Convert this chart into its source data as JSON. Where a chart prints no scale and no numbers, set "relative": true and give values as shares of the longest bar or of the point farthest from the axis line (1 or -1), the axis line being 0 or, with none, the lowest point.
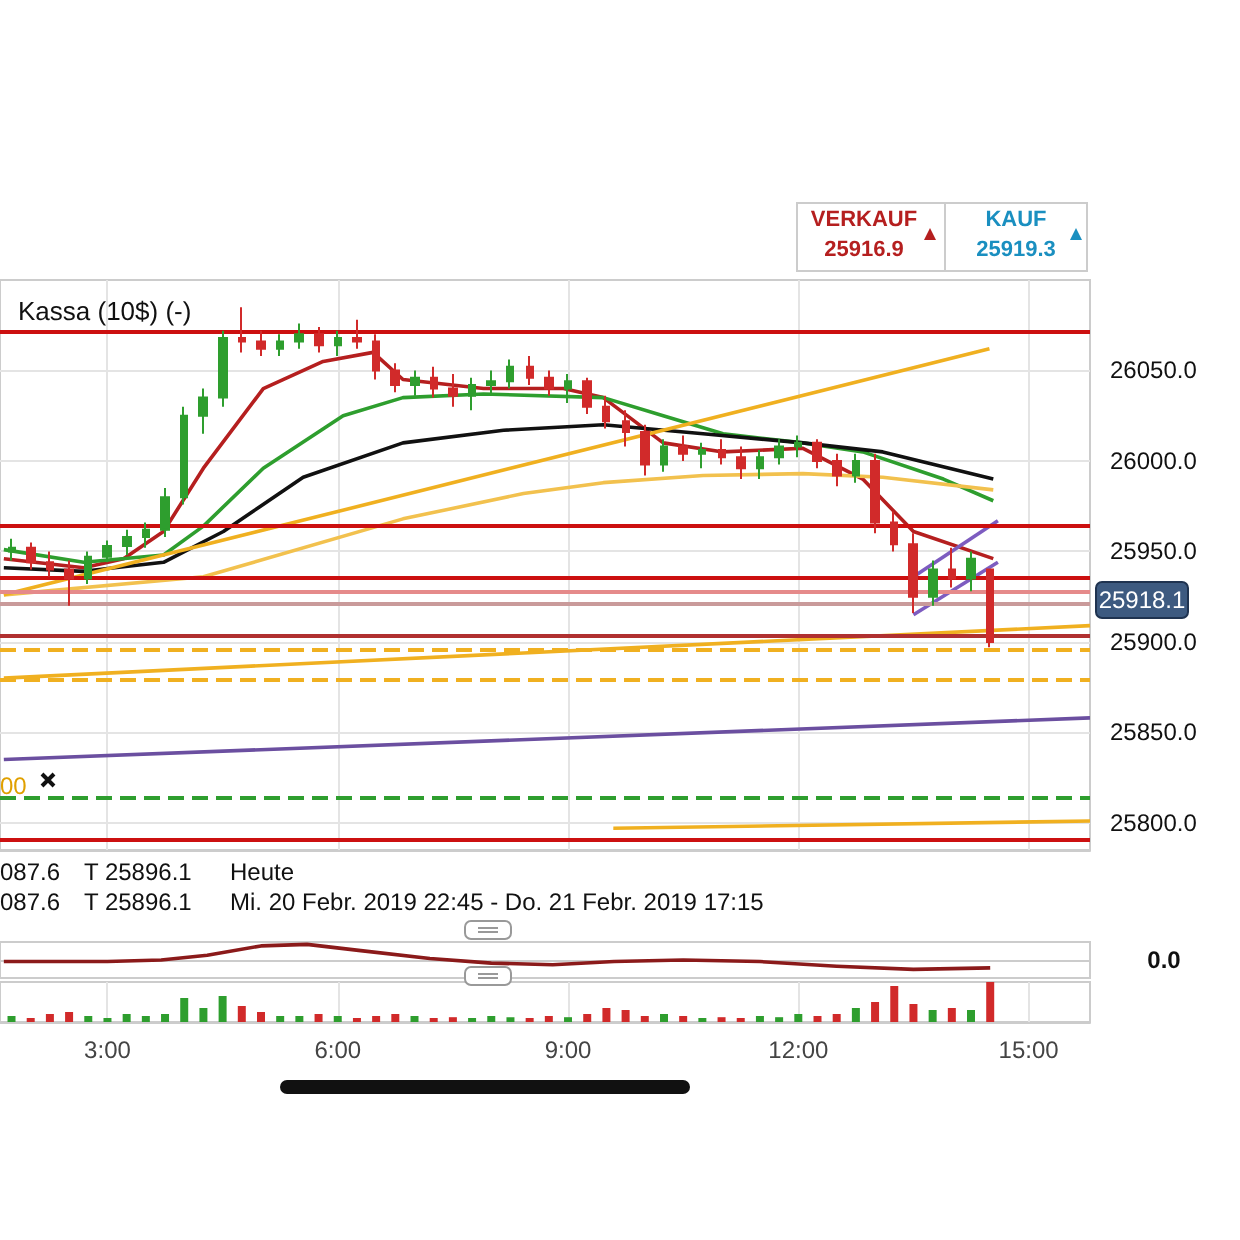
{
  "chart_data": [
    {
      "type": "candlestick",
      "title": "Kassa (10$) (-)",
      "x": [
        1.75,
        2,
        2.25,
        2.5,
        2.75,
        3,
        3.25,
        3.5,
        3.75,
        4,
        4.25,
        4.5,
        4.75,
        5,
        5.25,
        5.5,
        5.75,
        6,
        6.25,
        6.5,
        6.75,
        7,
        7.25,
        7.5,
        7.75,
        8,
        8.25,
        8.5,
        8.75,
        9,
        9.25,
        9.5,
        9.75,
        10,
        10.25,
        10.5,
        10.75,
        11,
        11.25,
        11.5,
        11.75,
        12,
        12.25,
        12.5,
        12.75,
        13,
        13.25,
        13.5,
        13.75,
        14,
        14.25,
        14.5
      ],
      "ohlc": [
        [
          25950,
          25957,
          25945,
          25952
        ],
        [
          25952,
          25955,
          25940,
          25944
        ],
        [
          25944,
          25950,
          25936,
          25940
        ],
        [
          25940,
          25945,
          25920,
          25935
        ],
        [
          25935,
          25950,
          25932,
          25947
        ],
        [
          25947,
          25956,
          25944,
          25953
        ],
        [
          25953,
          25962,
          25948,
          25958
        ],
        [
          25958,
          25966,
          25952,
          25962
        ],
        [
          25962,
          25985,
          25958,
          25980
        ],
        [
          25980,
          26030,
          25976,
          26025
        ],
        [
          26025,
          26040,
          26015,
          26035
        ],
        [
          26035,
          26072,
          26030,
          26068
        ],
        [
          26068,
          26085,
          26060,
          26066
        ],
        [
          26066,
          26072,
          26058,
          26062
        ],
        [
          26062,
          26070,
          26058,
          26066
        ],
        [
          26066,
          26076,
          26062,
          26070
        ],
        [
          26070,
          26074,
          26060,
          26064
        ],
        [
          26064,
          26072,
          26058,
          26068
        ],
        [
          26068,
          26078,
          26062,
          26066
        ],
        [
          26066,
          26070,
          26045,
          26050
        ],
        [
          26050,
          26054,
          26038,
          26042
        ],
        [
          26042,
          26050,
          26036,
          26046
        ],
        [
          26046,
          26052,
          26035,
          26040
        ],
        [
          26040,
          26048,
          26030,
          26036
        ],
        [
          26036,
          26046,
          26028,
          26042
        ],
        [
          26042,
          26050,
          26036,
          26044
        ],
        [
          26044,
          26056,
          26040,
          26052
        ],
        [
          26052,
          26058,
          26042,
          26046
        ],
        [
          26046,
          26050,
          26036,
          26040
        ],
        [
          26040,
          26048,
          26032,
          26044
        ],
        [
          26044,
          26046,
          26026,
          26030
        ],
        [
          26030,
          26036,
          26018,
          26022
        ],
        [
          26022,
          26028,
          26008,
          26016
        ],
        [
          26016,
          26020,
          25992,
          25998
        ],
        [
          25998,
          26012,
          25994,
          26008
        ],
        [
          26008,
          26014,
          26000,
          26004
        ],
        [
          26004,
          26010,
          25996,
          26006
        ],
        [
          26006,
          26012,
          25998,
          26002
        ],
        [
          26002,
          26008,
          25990,
          25996
        ],
        [
          25996,
          26006,
          25990,
          26002
        ],
        [
          26002,
          26012,
          25998,
          26008
        ],
        [
          26008,
          26014,
          26002,
          26010
        ],
        [
          26010,
          26012,
          25996,
          26000
        ],
        [
          26000,
          26004,
          25986,
          25992
        ],
        [
          25992,
          26004,
          25988,
          26000
        ],
        [
          26000,
          26004,
          25960,
          25966
        ],
        [
          25966,
          25972,
          25950,
          25954
        ],
        [
          25954,
          25960,
          25916,
          25925
        ],
        [
          25925,
          25945,
          25920,
          25940
        ],
        [
          25940,
          25952,
          25930,
          25935
        ],
        [
          25935,
          25950,
          25928,
          25946
        ],
        [
          25940,
          25940,
          25897,
          25900
        ]
      ],
      "colors": [
        "#2e9e2e",
        "#d12a2a",
        "#d12a2a",
        "#d12a2a",
        "#2e9e2e",
        "#2e9e2e",
        "#2e9e2e",
        "#2e9e2e",
        "#2e9e2e",
        "#2e9e2e",
        "#2e9e2e",
        "#2e9e2e",
        "#d12a2a",
        "#d12a2a",
        "#2e9e2e",
        "#2e9e2e",
        "#d12a2a",
        "#2e9e2e",
        "#d12a2a",
        "#d12a2a",
        "#d12a2a",
        "#2e9e2e",
        "#d12a2a",
        "#d12a2a",
        "#2e9e2e",
        "#2e9e2e",
        "#2e9e2e",
        "#d12a2a",
        "#d12a2a",
        "#2e9e2e",
        "#d12a2a",
        "#d12a2a",
        "#d12a2a",
        "#d12a2a",
        "#2e9e2e",
        "#d12a2a",
        "#2e9e2e",
        "#d12a2a",
        "#d12a2a",
        "#2e9e2e",
        "#2e9e2e",
        "#2e9e2e",
        "#d12a2a",
        "#d12a2a",
        "#2e9e2e",
        "#d12a2a",
        "#d12a2a",
        "#d12a2a",
        "#2e9e2e",
        "#d12a2a",
        "#2e9e2e",
        "#d12a2a"
      ],
      "series": [
        {
          "type": "line",
          "color": "#b51f1f",
          "x": [
            1.65,
            2.69,
            3.21,
            3.73,
            4.25,
            5.03,
            5.81,
            6.46,
            6.85,
            7.9,
            8.94,
            9.46,
            10.24,
            11.02,
            12.06,
            12.84,
            13.5,
            14.54
          ],
          "values": [
            25946,
            25941,
            25946,
            25961,
            25996,
            26040,
            26055,
            26060,
            26045,
            26040,
            26040,
            26035,
            26010,
            26005,
            26007,
            25990,
            25961,
            25946
          ]
        },
        {
          "type": "line",
          "color": "#2e9e2e",
          "x": [
            1.65,
            2.69,
            3.73,
            4.25,
            5.03,
            6.07,
            6.85,
            7.9,
            9.46,
            10.24,
            11.02,
            12.06,
            12.84,
            13.89,
            14.54
          ],
          "values": [
            25951,
            25944,
            25948,
            25964,
            25996,
            26025,
            26035,
            26037,
            26035,
            26025,
            26015,
            26010,
            26005,
            25990,
            25978
          ]
        },
        {
          "type": "line",
          "color": "#111111",
          "x": [
            1.65,
            2.69,
            3.73,
            4.51,
            5.55,
            6.85,
            8.16,
            9.46,
            10.76,
            12.06,
            13.1,
            14.54
          ],
          "values": [
            25941,
            25939,
            25944,
            25961,
            25991,
            26010,
            26017,
            26020,
            26015,
            26010,
            26005,
            25990
          ]
        },
        {
          "type": "line",
          "color": "#f2c14e",
          "x": [
            1.65,
            4.25,
            6.85,
            8.42,
            9.46,
            10.76,
            12.06,
            13.1,
            14.54
          ],
          "values": [
            25926,
            25936,
            25968,
            25982,
            25988,
            25992,
            25993,
            25991,
            25984
          ]
        },
        {
          "type": "line",
          "color": "#f0b020",
          "x": [
            1.65,
            14.49
          ],
          "values": [
            25926,
            26062
          ]
        },
        {
          "type": "line",
          "color": "#f0b020",
          "x": [
            1.65,
            15.8
          ],
          "values": [
            25880,
            25909
          ]
        },
        {
          "type": "line",
          "color": "#f0b020",
          "x": [
            9.59,
            15.8
          ],
          "values": [
            25797,
            25801
          ]
        },
        {
          "type": "line",
          "color": "#6b4fa0",
          "x": [
            1.65,
            15.8
          ],
          "values": [
            25835,
            25858
          ]
        },
        {
          "type": "line",
          "color": "#7d5cc0",
          "x": [
            13.5,
            14.6
          ],
          "values": [
            25915,
            25944
          ]
        },
        {
          "type": "line",
          "color": "#7d5cc0",
          "x": [
            13.5,
            14.6
          ],
          "values": [
            25936,
            25967
          ]
        }
      ],
      "ref_lines": [
        {
          "axis": "y",
          "value": 26071,
          "color": "#cc1010"
        },
        {
          "axis": "y",
          "value": 25964,
          "color": "#cc1010"
        },
        {
          "axis": "y",
          "value": 25936,
          "color": "#cc1010"
        },
        {
          "axis": "y",
          "value": 25928,
          "color": "#e58a8a"
        },
        {
          "axis": "y",
          "value": 25921,
          "color": "#c99a9a"
        },
        {
          "axis": "y",
          "value": 25904,
          "color": "#b03030"
        },
        {
          "axis": "y",
          "value": 25896,
          "color": "#f0b020",
          "line_style": "dashed"
        },
        {
          "axis": "y",
          "value": 25879,
          "color": "#f0b020",
          "line_style": "dashed"
        },
        {
          "axis": "y",
          "value": 25814,
          "color": "#2e9e2e",
          "line_style": "dashed"
        },
        {
          "axis": "y",
          "value": 25791,
          "color": "#cc1010"
        }
      ],
      "annotations": [
        "VERKAUF",
        "25916.9",
        "KAUF",
        "25919.3",
        "25918.1",
        "00",
        "087.6",
        "T 25896.1",
        "Heute",
        "087.6",
        "T 25896.1",
        "Mi. 20 Febr. 2019 22:45 - Do. 21 Febr. 2019 17:15"
      ],
      "xlim": [
        1.6,
        15.8
      ],
      "xticks": [
        {
          "value": 3,
          "label": null
        },
        {
          "value": 6,
          "label": null
        },
        {
          "value": 9,
          "label": null
        },
        {
          "value": 12,
          "label": null
        },
        {
          "value": 15,
          "label": null
        }
      ],
      "ylim": [
        25785,
        26100
      ],
      "yticks": [
        {
          "value": 25800,
          "label": "25800.0"
        },
        {
          "value": 25850,
          "label": "25850.0"
        },
        {
          "value": 25900,
          "label": "25900.0"
        },
        {
          "value": 25950,
          "label": "25950.0"
        },
        {
          "value": 26000,
          "label": "26000.0"
        },
        {
          "value": 26050,
          "label": "26050.0"
        }
      ],
      "grid": true,
      "tick_labels": "y"
    },
    {
      "type": "line",
      "relative": true,
      "series": [
        {
          "color": "#8b1a1a",
          "x": [
            1.65,
            3,
            3.7,
            4.3,
            5,
            5.6,
            6.3,
            7.2,
            8,
            8.8,
            9.6,
            10.5,
            11.5,
            12.5,
            13.5,
            14.5
          ],
          "values": [
            -0.1,
            -0.1,
            0,
            0.3,
            0.9,
            1,
            0.6,
            0.1,
            -0.2,
            -0.3,
            -0.1,
            0,
            -0.1,
            -0.4,
            -0.6,
            -0.5
          ]
        }
      ],
      "annotations": [
        "0.0"
      ],
      "xlim": [
        1.6,
        15.8
      ],
      "grid": "x",
      "tick_labels": false
    },
    {
      "type": "bar",
      "relative": true,
      "x": [
        1.75,
        2,
        2.25,
        2.5,
        2.75,
        3,
        3.25,
        3.5,
        3.75,
        4,
        4.25,
        4.5,
        4.75,
        5,
        5.25,
        5.5,
        5.75,
        6,
        6.25,
        6.5,
        6.75,
        7,
        7.25,
        7.5,
        7.75,
        8,
        8.25,
        8.5,
        8.75,
        9,
        9.25,
        9.5,
        9.75,
        10,
        10.25,
        10.5,
        10.75,
        11,
        11.25,
        11.5,
        11.75,
        12,
        12.25,
        12.5,
        12.75,
        13,
        13.25,
        13.5,
        13.75,
        14,
        14.25,
        14.5
      ],
      "values": [
        0.15,
        0.1,
        0.2,
        0.25,
        0.15,
        0.1,
        0.2,
        0.15,
        0.2,
        0.6,
        0.35,
        0.65,
        0.4,
        0.25,
        0.15,
        0.15,
        0.2,
        0.15,
        0.1,
        0.15,
        0.2,
        0.15,
        0.1,
        0.12,
        0.1,
        0.15,
        0.12,
        0.1,
        0.15,
        0.12,
        0.2,
        0.35,
        0.3,
        0.15,
        0.2,
        0.15,
        0.1,
        0.12,
        0.1,
        0.15,
        0.12,
        0.2,
        0.15,
        0.2,
        0.35,
        0.5,
        0.9,
        0.45,
        0.3,
        0.35,
        0.3,
        1
      ],
      "colors": [
        "#2e9e2e",
        "#d12a2a",
        "#d12a2a",
        "#d12a2a",
        "#2e9e2e",
        "#2e9e2e",
        "#2e9e2e",
        "#2e9e2e",
        "#2e9e2e",
        "#2e9e2e",
        "#2e9e2e",
        "#2e9e2e",
        "#d12a2a",
        "#d12a2a",
        "#2e9e2e",
        "#2e9e2e",
        "#d12a2a",
        "#2e9e2e",
        "#d12a2a",
        "#d12a2a",
        "#d12a2a",
        "#2e9e2e",
        "#d12a2a",
        "#d12a2a",
        "#2e9e2e",
        "#2e9e2e",
        "#2e9e2e",
        "#d12a2a",
        "#d12a2a",
        "#2e9e2e",
        "#d12a2a",
        "#d12a2a",
        "#d12a2a",
        "#d12a2a",
        "#2e9e2e",
        "#d12a2a",
        "#2e9e2e",
        "#d12a2a",
        "#d12a2a",
        "#2e9e2e",
        "#2e9e2e",
        "#2e9e2e",
        "#d12a2a",
        "#d12a2a",
        "#2e9e2e",
        "#d12a2a",
        "#d12a2a",
        "#d12a2a",
        "#2e9e2e",
        "#d12a2a",
        "#2e9e2e",
        "#d12a2a"
      ],
      "xlim": [
        1.6,
        15.8
      ],
      "xticks": [
        {
          "value": 3,
          "label": "3:00"
        },
        {
          "value": 6,
          "label": "6:00"
        },
        {
          "value": 9,
          "label": "9:00"
        },
        {
          "value": 12,
          "label": "12:00"
        },
        {
          "value": 15,
          "label": "15:00"
        }
      ],
      "grid": "x"
    }
  ]
}
